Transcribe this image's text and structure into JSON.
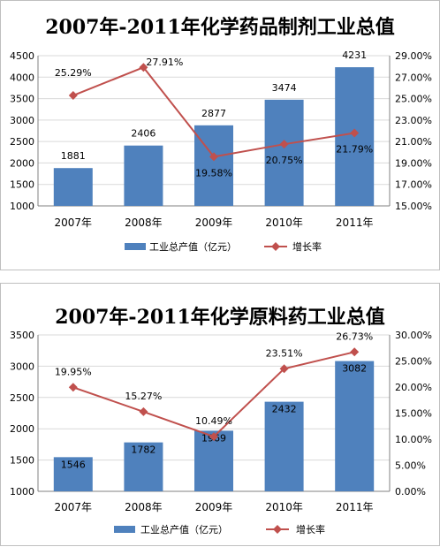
{
  "chart_data": [
    {
      "type": "bar",
      "title": "2007年-2011年化学药品制剂工业总值",
      "categories": [
        "2007年",
        "2008年",
        "2009年",
        "2010年",
        "2011年"
      ],
      "series": [
        {
          "name": "工业总产值（亿元）",
          "type": "bar",
          "axis": "left",
          "values": [
            1881,
            2406,
            2877,
            3474,
            4231
          ],
          "labels": [
            "1881",
            "2406",
            "2877",
            "3474",
            "4231"
          ],
          "color": "#4f81bd"
        },
        {
          "name": "增长率",
          "type": "line",
          "axis": "right",
          "values": [
            25.29,
            27.91,
            19.58,
            20.75,
            21.79
          ],
          "labels": [
            "25.29%",
            "27.91%",
            "19.58%",
            "20.75%",
            "21.79%"
          ],
          "color": "#c0504d"
        }
      ],
      "ylim": [
        1000,
        4500
      ],
      "yticks": [
        "1000",
        "1500",
        "2000",
        "2500",
        "3000",
        "3500",
        "4000",
        "4500"
      ],
      "y2lim": [
        15,
        29
      ],
      "y2ticks": [
        "15.00%",
        "17.00%",
        "19.00%",
        "21.00%",
        "23.00%",
        "25.00%",
        "27.00%",
        "29.00%"
      ],
      "grid": true,
      "legend": "bottom"
    },
    {
      "type": "bar",
      "title": "2007年-2011年化学原料药工业总值",
      "categories": [
        "2007年",
        "2008年",
        "2009年",
        "2010年",
        "2011年"
      ],
      "series": [
        {
          "name": "工业总产值（亿元）",
          "type": "bar",
          "axis": "left",
          "values": [
            1546,
            1782,
            1969,
            2432,
            3082
          ],
          "labels": [
            "1546",
            "1782",
            "1969",
            "2432",
            "3082"
          ],
          "color": "#4f81bd"
        },
        {
          "name": "增长率",
          "type": "line",
          "axis": "right",
          "values": [
            19.95,
            15.27,
            10.49,
            23.51,
            26.73
          ],
          "labels": [
            "19.95%",
            "15.27%",
            "10.49%",
            "23.51%",
            "26.73%"
          ],
          "color": "#c0504d"
        }
      ],
      "ylim": [
        1000,
        3500
      ],
      "yticks": [
        "1000",
        "1500",
        "2000",
        "2500",
        "3000",
        "3500"
      ],
      "y2lim": [
        0,
        30
      ],
      "y2ticks": [
        "0.00%",
        "5.00%",
        "10.00%",
        "15.00%",
        "20.00%",
        "25.00%",
        "30.00%"
      ],
      "grid": true,
      "legend": "bottom"
    }
  ]
}
